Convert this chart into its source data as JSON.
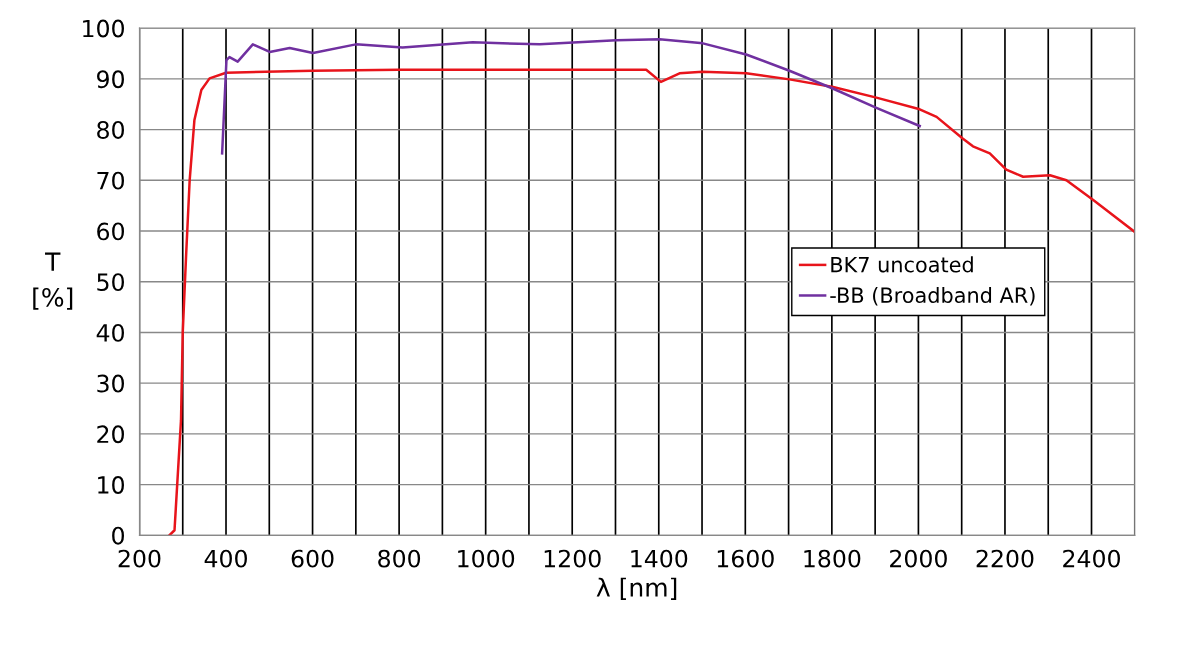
{
  "chart_data": {
    "type": "line",
    "xlabel": "λ [nm]",
    "ylabel": "T\n[%]",
    "xlim": [
      200,
      2500
    ],
    "ylim": [
      0,
      100
    ],
    "xticks": [
      200,
      {
        "value": 300,
        "label": null
      },
      400,
      {
        "value": 500,
        "label": null
      },
      600,
      {
        "value": 700,
        "label": null
      },
      800,
      {
        "value": 900,
        "label": null
      },
      1000,
      {
        "value": 1100,
        "label": null
      },
      1200,
      {
        "value": 1300,
        "label": null
      },
      1400,
      {
        "value": 1500,
        "label": null
      },
      1600,
      {
        "value": 1700,
        "label": null
      },
      1800,
      {
        "value": 1900,
        "label": null
      },
      2000,
      {
        "value": 2100,
        "label": null
      },
      2200,
      {
        "value": 2300,
        "label": null
      },
      2400,
      {
        "value": 2500,
        "label": null
      }
    ],
    "yticks": [
      0,
      10,
      20,
      30,
      40,
      50,
      60,
      70,
      80,
      90,
      100
    ],
    "grid": true,
    "legend": "center right",
    "marker": "none",
    "line_style": "solid",
    "series": [
      {
        "name": "BK7 uncoated",
        "color": "#e8141b",
        "x": [
          269,
          281,
          296,
          300,
          308,
          316,
          327,
          343,
          362,
          400,
          600,
          800,
          1000,
          1200,
          1371,
          1405,
          1448,
          1501,
          1602,
          1702,
          1803,
          1903,
          2003,
          2042,
          2103,
          2126,
          2165,
          2203,
          2242,
          2304,
          2342,
          2404,
          2500
        ],
        "values": [
          0,
          1,
          22.7,
          40,
          55.6,
          70,
          81.9,
          87.8,
          90.1,
          91.2,
          91.6,
          91.8,
          91.8,
          91.8,
          91.8,
          89.4,
          91.1,
          91.4,
          91.1,
          89.9,
          88.4,
          86.3,
          84.0,
          82.5,
          78.2,
          76.7,
          75.3,
          72.1,
          70.7,
          71.0,
          70.0,
          66.1,
          59.8
        ]
      },
      {
        "name": "-BB (Broadband AR)",
        "color": "#7030a0",
        "x": [
          391,
          401,
          408,
          427,
          462,
          501,
          547,
          601,
          700,
          808,
          970,
          1125,
          1302,
          1402,
          1502,
          1602,
          1702,
          1802,
          1903,
          2003
        ],
        "values": [
          75.3,
          93.7,
          94.3,
          93.4,
          96.8,
          95.3,
          96.1,
          95.1,
          96.8,
          96.2,
          97.2,
          96.8,
          97.6,
          97.8,
          97.0,
          94.8,
          91.6,
          88.1,
          84.3,
          80.7
        ]
      }
    ]
  }
}
